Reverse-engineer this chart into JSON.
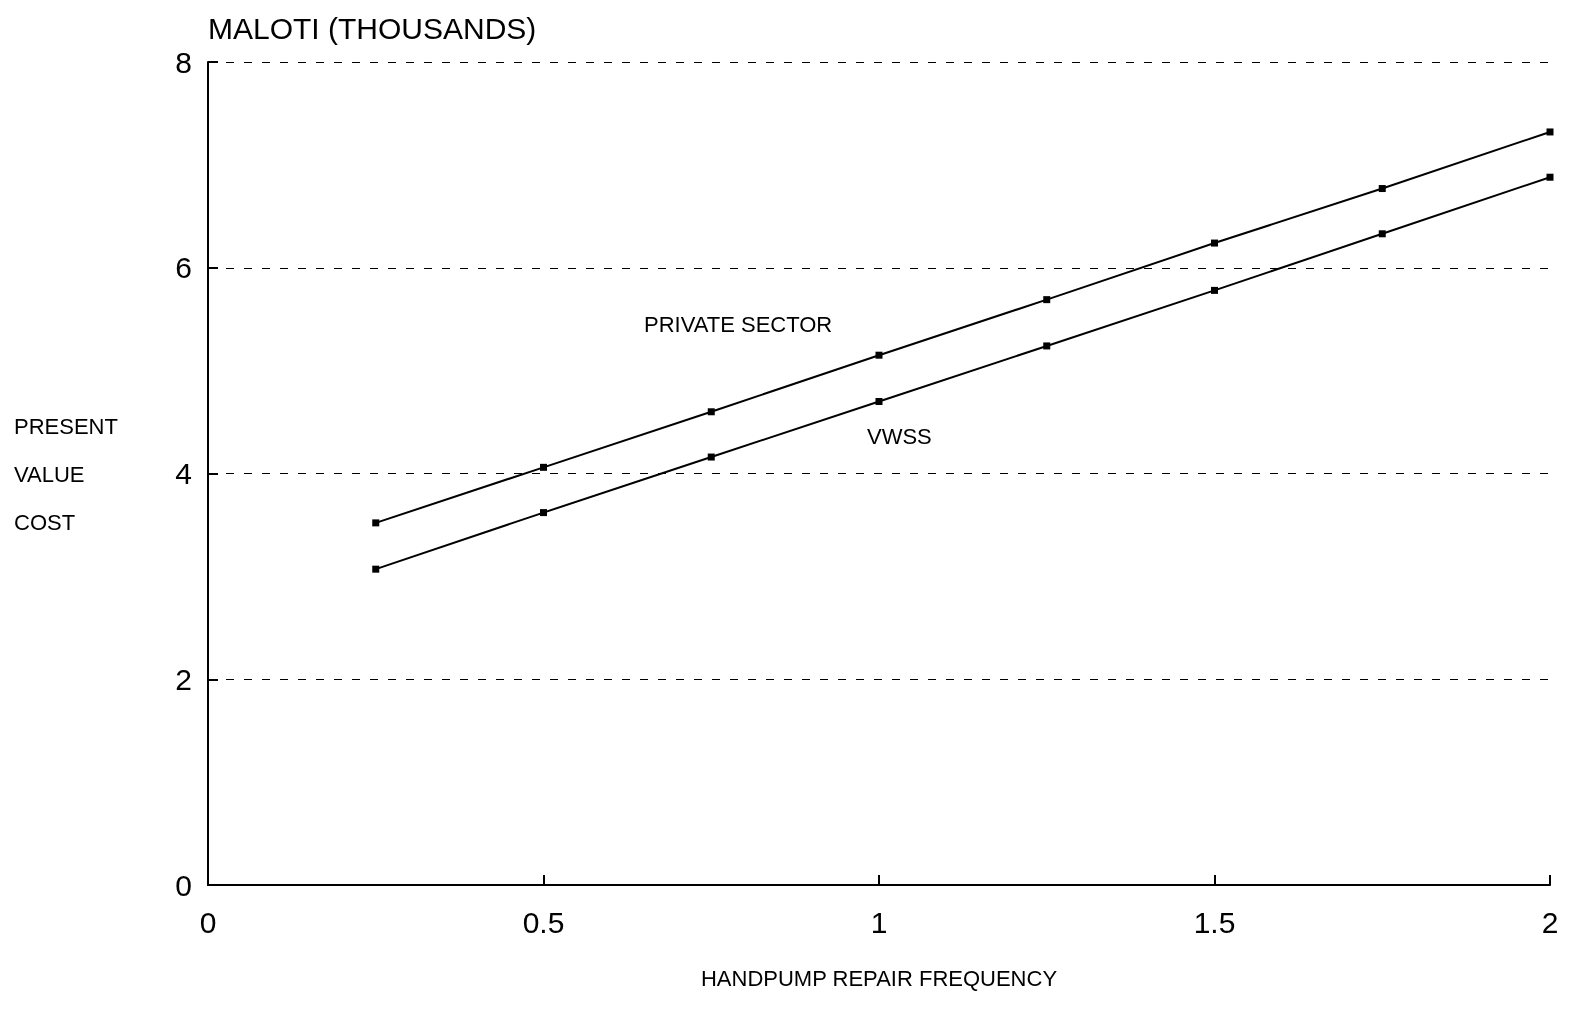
{
  "chart_data": {
    "type": "line",
    "title": "MALOTI (THOUSANDS)",
    "xlabel": "HANDPUMP REPAIR FREQUENCY",
    "ylabel": "PRESENT VALUE COST",
    "x": [
      0.25,
      0.5,
      0.75,
      1,
      1.25,
      1.5,
      1.75,
      2
    ],
    "series": [
      {
        "name": "PRIVATE SECTOR",
        "color": "#000000",
        "values": [
          3.52,
          4.06,
          4.6,
          5.15,
          5.69,
          6.24,
          6.77,
          7.32
        ]
      },
      {
        "name": "VWSS",
        "color": "#000000",
        "values": [
          3.07,
          3.62,
          4.16,
          4.7,
          5.24,
          5.78,
          6.33,
          6.88
        ]
      }
    ],
    "xlim": [
      0,
      2
    ],
    "xticks": [
      0,
      0.5,
      1,
      1.5,
      2
    ],
    "ylim": [
      0,
      8
    ],
    "yticks": [
      0,
      2,
      4,
      6,
      8
    ],
    "grid": "y",
    "marker": "square",
    "line_style": "solid",
    "legend": false
  }
}
